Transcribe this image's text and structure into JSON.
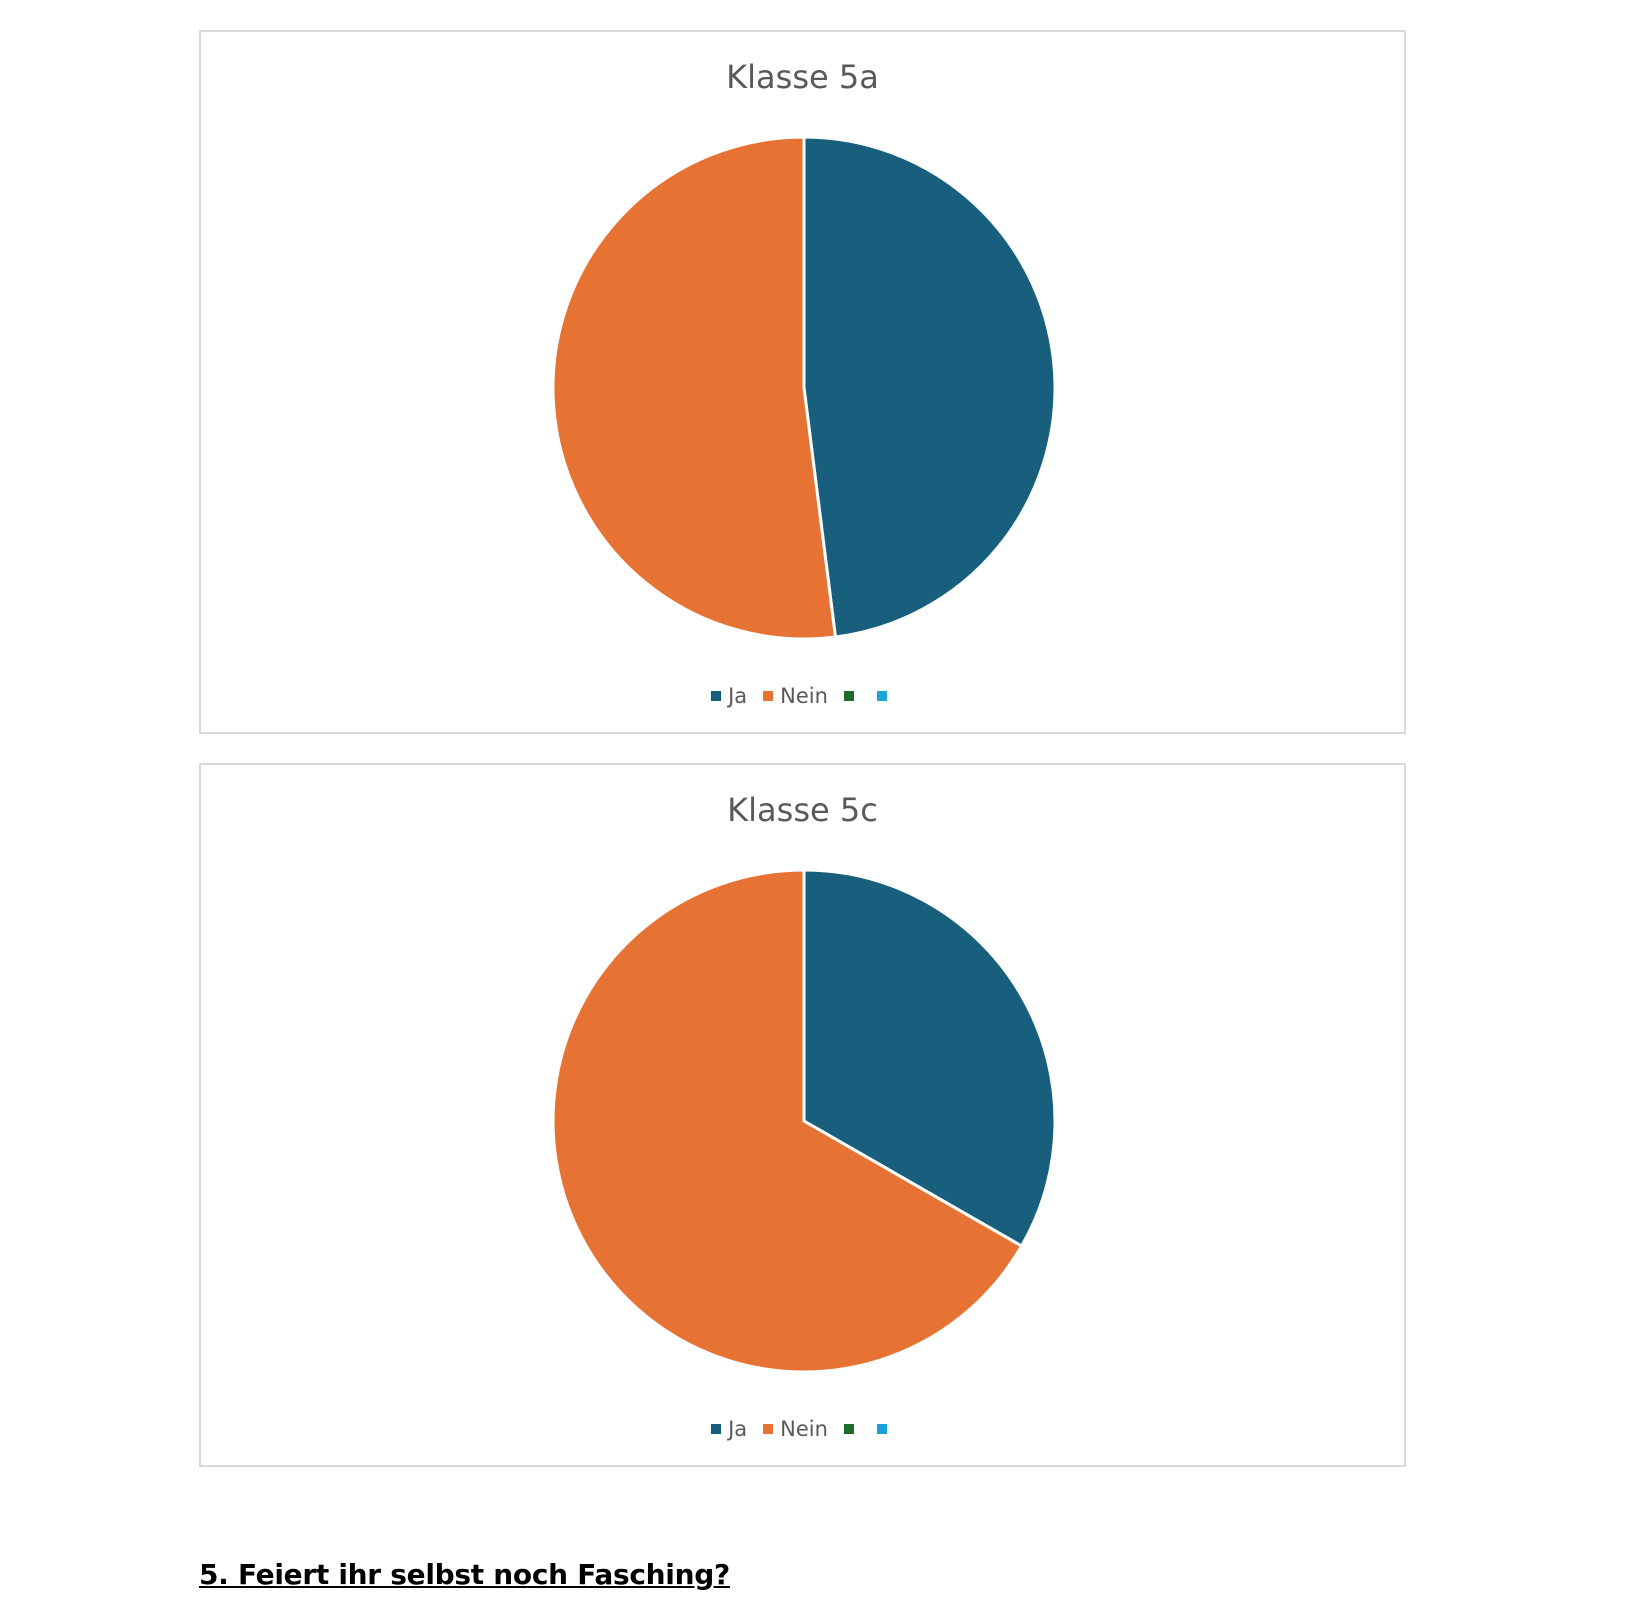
{
  "chart_data": [
    {
      "type": "pie",
      "title": "Klasse 5a",
      "categories": [
        "Ja",
        "Nein",
        "",
        ""
      ],
      "values": [
        48,
        52,
        0,
        0
      ],
      "colors": [
        "#185f7e",
        "#e67334",
        "#1e6b2e",
        "#1aa3d8"
      ],
      "legend": "bottom"
    },
    {
      "type": "pie",
      "title": "Klasse 5c",
      "categories": [
        "Ja",
        "Nein",
        "",
        ""
      ],
      "values": [
        33.3,
        66.7,
        0,
        0
      ],
      "colors": [
        "#185f7e",
        "#e67334",
        "#1e6b2e",
        "#1aa3d8"
      ],
      "legend": "bottom"
    }
  ],
  "question": "5. Feiert ihr selbst noch Fasching?"
}
